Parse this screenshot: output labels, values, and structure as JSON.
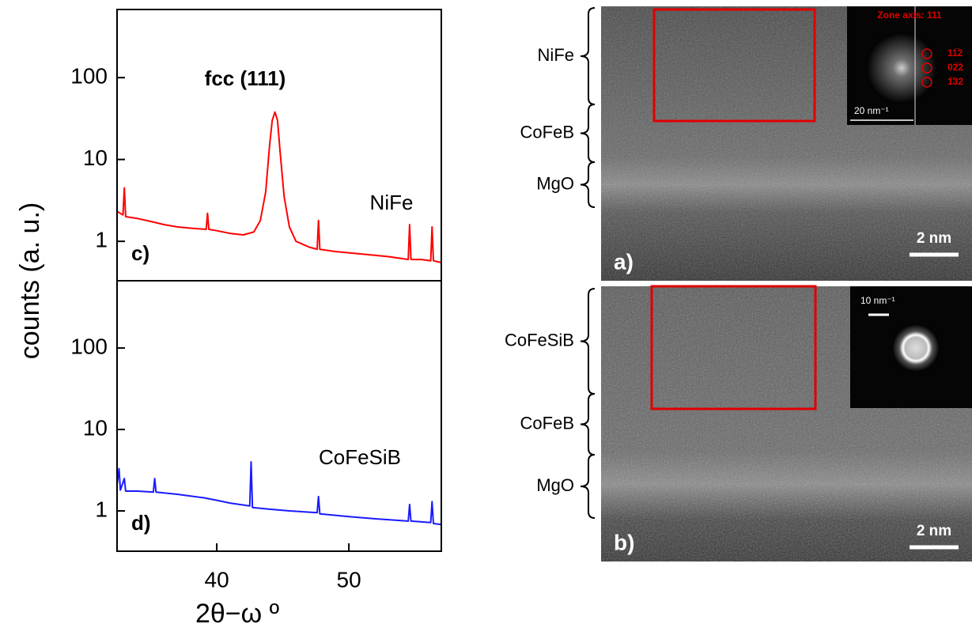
{
  "chart_data": [
    {
      "type": "line",
      "log_y": true,
      "y_label": "counts (a. u.)",
      "annotations": [
        "fcc (111)",
        "NiFe",
        "c)"
      ],
      "xlim": [
        32.45,
        57.0
      ],
      "ylim": [
        0.33,
        680
      ],
      "yticks": [
        1,
        10,
        100
      ],
      "series": [
        {
          "name": "NiFe",
          "color": "#ff0000",
          "x": [
            32.5,
            32.9,
            33.0,
            33.1,
            34,
            35,
            36,
            37,
            38,
            39.2,
            39.3,
            39.4,
            40,
            41,
            42,
            42.8,
            43.3,
            43.7,
            44.0,
            44.2,
            44.4,
            44.6,
            44.8,
            45.1,
            45.5,
            46,
            47,
            47.6,
            47.7,
            47.8,
            49,
            51,
            53,
            54.5,
            54.6,
            54.7,
            55.5,
            56.2,
            56.3,
            56.4,
            57
          ],
          "values": [
            2.3,
            2.1,
            4.5,
            2.0,
            1.9,
            1.75,
            1.6,
            1.5,
            1.45,
            1.4,
            2.2,
            1.4,
            1.35,
            1.25,
            1.2,
            1.3,
            1.8,
            4,
            15,
            30,
            38,
            30,
            12,
            3.5,
            1.5,
            1.0,
            0.85,
            0.8,
            1.8,
            0.8,
            0.75,
            0.7,
            0.65,
            0.6,
            1.6,
            0.6,
            0.6,
            0.58,
            1.5,
            0.58,
            0.55
          ]
        }
      ]
    },
    {
      "type": "line",
      "log_y": true,
      "x_label": "2θ−ω º",
      "annotations": [
        "CoFeSiB",
        "d)"
      ],
      "xlim": [
        32.45,
        57.0
      ],
      "ylim": [
        0.32,
        670
      ],
      "xticks": [
        40,
        50
      ],
      "yticks": [
        1,
        10,
        100
      ],
      "series": [
        {
          "name": "CoFeSiB",
          "color": "#1a1aff",
          "x": [
            32.4,
            32.6,
            32.7,
            33.0,
            33.1,
            34,
            35.2,
            35.3,
            35.4,
            37,
            39,
            40,
            41,
            42.5,
            42.6,
            42.7,
            44,
            45.5,
            47.6,
            47.7,
            47.8,
            50,
            52,
            54.5,
            54.6,
            54.7,
            56.2,
            56.3,
            56.4,
            57
          ],
          "values": [
            1.8,
            3.3,
            1.8,
            2.5,
            1.75,
            1.75,
            1.7,
            2.5,
            1.7,
            1.6,
            1.45,
            1.35,
            1.25,
            1.15,
            4.0,
            1.1,
            1.05,
            1.0,
            0.95,
            1.5,
            0.92,
            0.85,
            0.8,
            0.75,
            1.2,
            0.75,
            0.72,
            1.3,
            0.7,
            0.68
          ]
        }
      ]
    }
  ],
  "tem_panels": [
    {
      "label": "a)",
      "scale_bar": "2 nm",
      "layers": [
        "NiFe",
        "CoFeB",
        "MgO"
      ],
      "inset": {
        "title": "Zone axis: 111",
        "spots": [
          "11̅2",
          "02̅2",
          "1̅32"
        ],
        "scale_bar": "20 nm⁻¹"
      }
    },
    {
      "label": "b)",
      "scale_bar": "2 nm",
      "layers": [
        "CoFeSiB",
        "CoFeB",
        "MgO"
      ],
      "inset": {
        "scale_bar": "10 nm⁻¹"
      }
    }
  ]
}
